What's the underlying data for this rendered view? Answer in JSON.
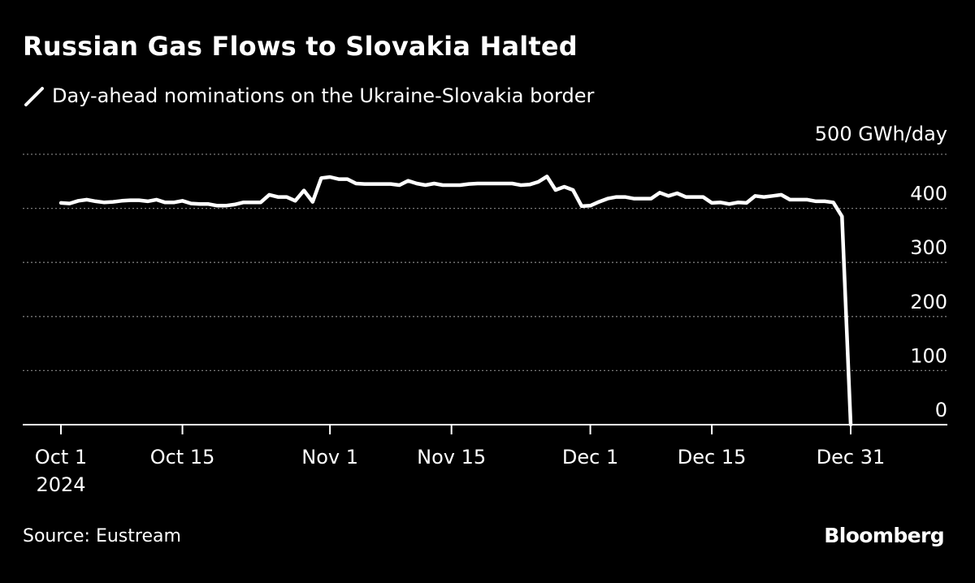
{
  "title": "Russian Gas Flows to Slovakia Halted",
  "source": "Source: Eustream",
  "brand": "Bloomberg",
  "colors": {
    "background": "#000000",
    "line": "#ffffff",
    "grid": "#7a7a7a",
    "text": "#ffffff"
  },
  "chart_data": {
    "type": "line",
    "title": "Russian Gas Flows to Slovakia Halted",
    "xlabel": "",
    "ylabel": "",
    "y_unit_label": "500 GWh/day",
    "ylim": [
      0,
      500
    ],
    "yticks": [
      0,
      100,
      200,
      300,
      400
    ],
    "ytick_labels": [
      "0",
      "100",
      "200",
      "300",
      "400"
    ],
    "grid": "horizontal dotted",
    "legend_position": "top-left",
    "x_domain": [
      1,
      92
    ],
    "x_ticks": [
      {
        "day": 1,
        "label": "Oct 1",
        "label2": "2024"
      },
      {
        "day": 15,
        "label": "Oct 15"
      },
      {
        "day": 32,
        "label": "Nov 1"
      },
      {
        "day": 46,
        "label": "Nov 15"
      },
      {
        "day": 62,
        "label": "Dec 1"
      },
      {
        "day": 76,
        "label": "Dec 15"
      },
      {
        "day": 92,
        "label": "Dec 31"
      }
    ],
    "series": [
      {
        "name": "Day-ahead nominations on the Ukraine-Slovakia border",
        "x": [
          1,
          2,
          3,
          4,
          5,
          6,
          7,
          8,
          9,
          10,
          11,
          12,
          13,
          14,
          15,
          16,
          17,
          18,
          19,
          20,
          21,
          22,
          23,
          24,
          25,
          26,
          27,
          28,
          29,
          30,
          31,
          32,
          33,
          34,
          35,
          36,
          37,
          38,
          39,
          40,
          41,
          42,
          43,
          44,
          45,
          46,
          47,
          48,
          49,
          50,
          51,
          52,
          53,
          54,
          55,
          56,
          57,
          58,
          59,
          60,
          61,
          62,
          63,
          64,
          65,
          66,
          67,
          68,
          69,
          70,
          71,
          72,
          73,
          74,
          75,
          76,
          77,
          78,
          79,
          80,
          81,
          82,
          83,
          84,
          85,
          86,
          87,
          88,
          89,
          90,
          91,
          92
        ],
        "values": [
          410,
          409,
          414,
          416,
          413,
          411,
          412,
          414,
          415,
          415,
          413,
          416,
          411,
          411,
          414,
          409,
          408,
          408,
          405,
          405,
          407,
          411,
          411,
          411,
          425,
          421,
          421,
          414,
          433,
          412,
          456,
          458,
          454,
          454,
          446,
          445,
          445,
          445,
          445,
          443,
          451,
          446,
          443,
          446,
          443,
          443,
          443,
          445,
          446,
          446,
          446,
          446,
          446,
          443,
          444,
          449,
          459,
          434,
          440,
          434,
          404,
          405,
          412,
          418,
          421,
          421,
          418,
          418,
          418,
          429,
          423,
          428,
          421,
          421,
          421,
          410,
          411,
          408,
          411,
          410,
          423,
          421,
          423,
          425,
          416,
          416,
          416,
          413,
          413,
          411,
          385,
          0
        ]
      }
    ]
  }
}
